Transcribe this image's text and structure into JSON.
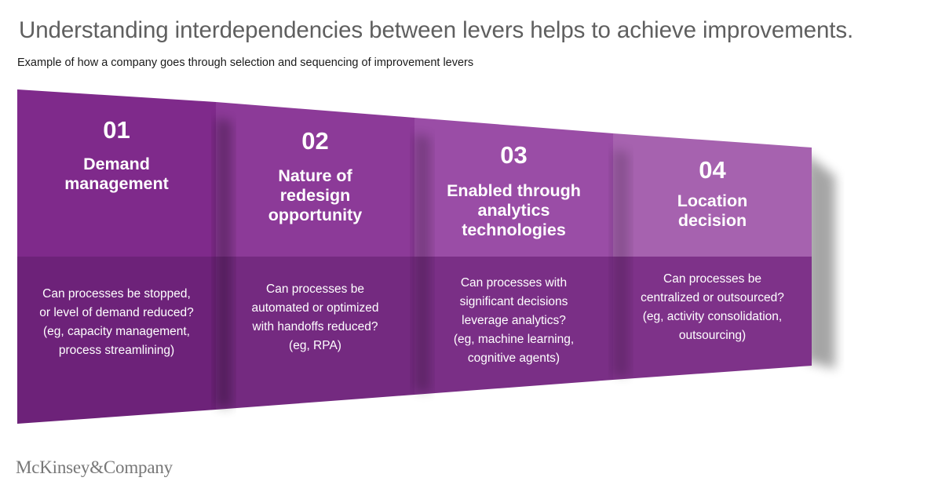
{
  "header": {
    "title": "Understanding interdependencies between levers helps to achieve improvements.",
    "subtitle": "Example of how a company goes through selection and sequencing of improvement levers"
  },
  "levers": [
    {
      "number": "01",
      "title_lines": [
        "Demand",
        "management"
      ],
      "description_lines": [
        "Can processes be stopped,",
        "or level of demand reduced?",
        "(eg, capacity management,",
        "process streamlining)"
      ]
    },
    {
      "number": "02",
      "title_lines": [
        "Nature of",
        "redesign",
        "opportunity"
      ],
      "description_lines": [
        "Can processes be",
        "automated or optimized",
        "with handoffs reduced?",
        "(eg, RPA)"
      ]
    },
    {
      "number": "03",
      "title_lines": [
        "Enabled through",
        "analytics",
        "technologies"
      ],
      "description_lines": [
        "Can processes with",
        "significant decisions",
        "leverage analytics?",
        "(eg, machine learning,",
        "cognitive agents)"
      ]
    },
    {
      "number": "04",
      "title_lines": [
        "Location",
        "decision"
      ],
      "description_lines": [
        "Can processes be",
        "centralized or outsourced?",
        "(eg, activity consolidation,",
        "outsourcing)"
      ]
    }
  ],
  "colors": {
    "top_panels": [
      "#7f2a8b",
      "#8c3a98",
      "#9a4da6",
      "#a662af"
    ],
    "bottom_panels": [
      "#6d2279",
      "#742a80",
      "#7a2f86",
      "#7e3289"
    ]
  },
  "footer": {
    "logo": "McKinsey&Company"
  }
}
